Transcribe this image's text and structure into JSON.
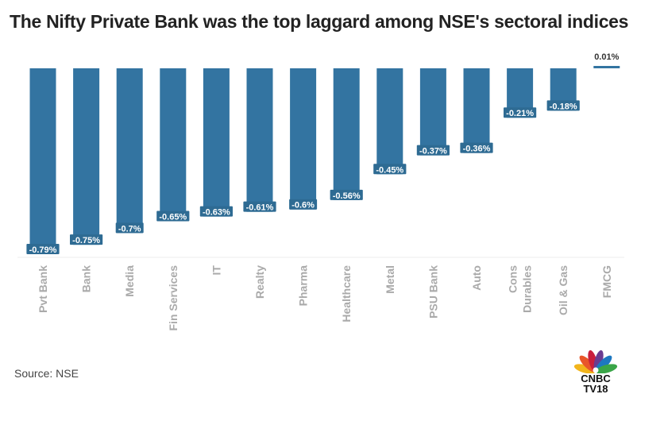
{
  "title": "The Nifty Private Bank was the top laggard among NSE's sectoral  indices",
  "source": "Source: NSE",
  "logo": {
    "line1": "CNBC",
    "line2": "TV18"
  },
  "colors": {
    "bar": "#3374a1",
    "label_bg": "#2e6b93",
    "axis_text": "#aaaaaa",
    "grid": "#eeeeee"
  },
  "chart_data": {
    "type": "bar",
    "title": "The Nifty Private Bank was the top laggard among NSE's sectoral  indices",
    "xlabel": "",
    "ylabel": "",
    "categories": [
      "Pvt Bank",
      "Bank",
      "Media",
      "Fin Services",
      "IT",
      "Realty",
      "Pharma",
      "Healthcare",
      "Metal",
      "PSU Bank",
      "Auto",
      "Cons Durables",
      "Oil & Gas",
      "FMCG"
    ],
    "values": [
      -0.79,
      -0.75,
      -0.7,
      -0.65,
      -0.63,
      -0.61,
      -0.6,
      -0.56,
      -0.45,
      -0.37,
      -0.36,
      -0.21,
      -0.18,
      0.01
    ],
    "data_labels": [
      "-0.79%",
      "-0.75%",
      "-0.7%",
      "-0.65%",
      "-0.63%",
      "-0.61%",
      "-0.6%",
      "-0.56%",
      "-0.45%",
      "-0.37%",
      "-0.36%",
      "-0.21%",
      "-0.18%",
      "0.01%"
    ],
    "ylim": [
      -0.8,
      0.02
    ],
    "grid": false,
    "legend": "none"
  }
}
